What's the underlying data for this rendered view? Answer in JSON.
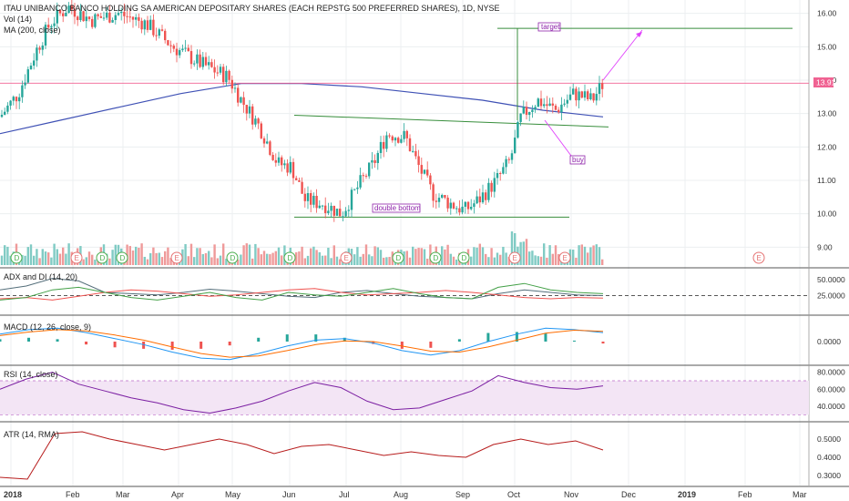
{
  "title_line": "ITAU UNIBANCO BANCO HOLDING SA AMERICAN DEPOSITARY SHARES (EACH REPSTG 500 PREFERRED SHARES), 1D, NYSE",
  "indicators": {
    "vol": "Vol (14)",
    "ma": "MA (200, close)",
    "adx": "ADX and DI (14, 20)",
    "macd": "MACD (12, 26, close, 9)",
    "rsi": "RSI (14, close)",
    "atr": "ATR (14, RMA)"
  },
  "price_badge": "13.91",
  "annotations": {
    "target": "target",
    "buy": "buy",
    "double_bottom": "double bottom"
  },
  "colors": {
    "up": "#26a69a",
    "down": "#ef5350",
    "ma": "#3f51b5",
    "trend": "#388e3c",
    "arrow": "#e040fb",
    "annotation": "#8e24aa",
    "price_line": "#f06292",
    "atr": "#b71c1c",
    "rsi_band": "#f3e5f5"
  },
  "chart_data": [
    {
      "type": "candlestick",
      "pane": "price",
      "x": [
        "2018-01",
        "2018-02",
        "2018-03",
        "2018-04",
        "2018-05",
        "2018-06",
        "2018-07",
        "2018-08",
        "2018-09",
        "2018-10",
        "2018-11"
      ],
      "close": [
        13.1,
        15.8,
        16.2,
        15.4,
        14.0,
        11.4,
        10.2,
        12.3,
        10.1,
        12.9,
        13.91
      ],
      "ma_200": [
        12.4,
        12.8,
        13.2,
        13.6,
        13.9,
        13.9,
        13.8,
        13.6,
        13.4,
        13.1,
        12.9
      ],
      "yticks": [
        "16.00",
        "15.00",
        "14.00",
        "13.00",
        "12.00",
        "11.00",
        "10.00",
        "9.00"
      ],
      "ylim": [
        8.6,
        16.4
      ],
      "last_price": 13.91,
      "target": 15.55,
      "resistance": 12.7,
      "support": 9.9
    },
    {
      "type": "bar",
      "pane": "volume",
      "values": [
        3,
        5,
        4,
        6,
        3,
        2,
        4,
        6,
        5,
        4,
        3,
        5,
        4,
        3,
        6,
        4,
        5,
        3,
        6,
        9,
        4,
        5,
        3,
        4,
        5,
        3,
        6,
        4,
        5,
        7,
        4,
        3,
        5,
        4,
        6,
        4,
        3,
        5,
        10,
        6,
        4,
        5,
        3,
        4
      ],
      "events": [
        "D",
        "E",
        "D",
        "D",
        "E",
        "D",
        "D",
        "E",
        "D",
        "D",
        "D",
        "E",
        "E"
      ]
    },
    {
      "type": "line",
      "pane": "adx",
      "title": "ADX and DI (14, 20)",
      "yticks": [
        "50.0000",
        "25.0000"
      ],
      "series": [
        {
          "values": [
            34,
            40,
            52,
            48,
            30,
            28,
            26,
            30,
            35,
            32,
            28,
            24,
            22,
            30,
            33,
            28,
            24,
            22,
            20,
            28,
            34,
            30,
            26,
            25
          ]
        },
        {
          "values": [
            20,
            22,
            18,
            24,
            30,
            34,
            32,
            28,
            24,
            26,
            30,
            34,
            36,
            30,
            26,
            28,
            30,
            33,
            30,
            26,
            22,
            20,
            22,
            21
          ]
        },
        {
          "values": [
            18,
            22,
            34,
            38,
            30,
            22,
            18,
            24,
            30,
            22,
            18,
            30,
            26,
            24,
            30,
            36,
            28,
            22,
            20,
            38,
            44,
            34,
            30,
            28
          ]
        }
      ]
    },
    {
      "type": "line",
      "pane": "macd",
      "title": "MACD (12, 26, close, 9)",
      "yticks": [
        "0.0000"
      ],
      "series": [
        {
          "values": [
            0.25,
            0.4,
            0.45,
            0.3,
            0.1,
            -0.1,
            -0.35,
            -0.55,
            -0.6,
            -0.4,
            -0.15,
            0.05,
            0.1,
            -0.05,
            -0.3,
            -0.45,
            -0.3,
            0.0,
            0.25,
            0.45,
            0.4,
            0.3
          ]
        },
        {
          "values": [
            0.2,
            0.32,
            0.4,
            0.36,
            0.22,
            0.05,
            -0.18,
            -0.4,
            -0.52,
            -0.48,
            -0.3,
            -0.1,
            0.02,
            0.0,
            -0.15,
            -0.32,
            -0.35,
            -0.18,
            0.05,
            0.28,
            0.38,
            0.34
          ]
        }
      ]
    },
    {
      "type": "line",
      "pane": "rsi",
      "title": "RSI (14, close)",
      "yticks": [
        "80.0000",
        "60.0000",
        "40.0000"
      ],
      "band": [
        30,
        70
      ],
      "values": [
        60,
        72,
        80,
        66,
        58,
        50,
        44,
        36,
        32,
        38,
        46,
        58,
        68,
        62,
        46,
        36,
        38,
        48,
        58,
        76,
        68,
        62,
        60,
        64
      ]
    },
    {
      "type": "line",
      "pane": "atr",
      "title": "ATR (14, RMA)",
      "yticks": [
        "0.5000",
        "0.4000",
        "0.3000"
      ],
      "values": [
        0.29,
        0.28,
        0.53,
        0.54,
        0.5,
        0.47,
        0.44,
        0.47,
        0.5,
        0.47,
        0.42,
        0.46,
        0.47,
        0.44,
        0.41,
        0.43,
        0.41,
        0.4,
        0.47,
        0.5,
        0.47,
        0.49,
        0.44
      ]
    }
  ],
  "x_axis": [
    "2018",
    "Feb",
    "Mar",
    "Apr",
    "May",
    "Jun",
    "Jul",
    "Aug",
    "Sep",
    "Oct",
    "Nov",
    "Dec",
    "2019",
    "Feb",
    "Mar"
  ]
}
